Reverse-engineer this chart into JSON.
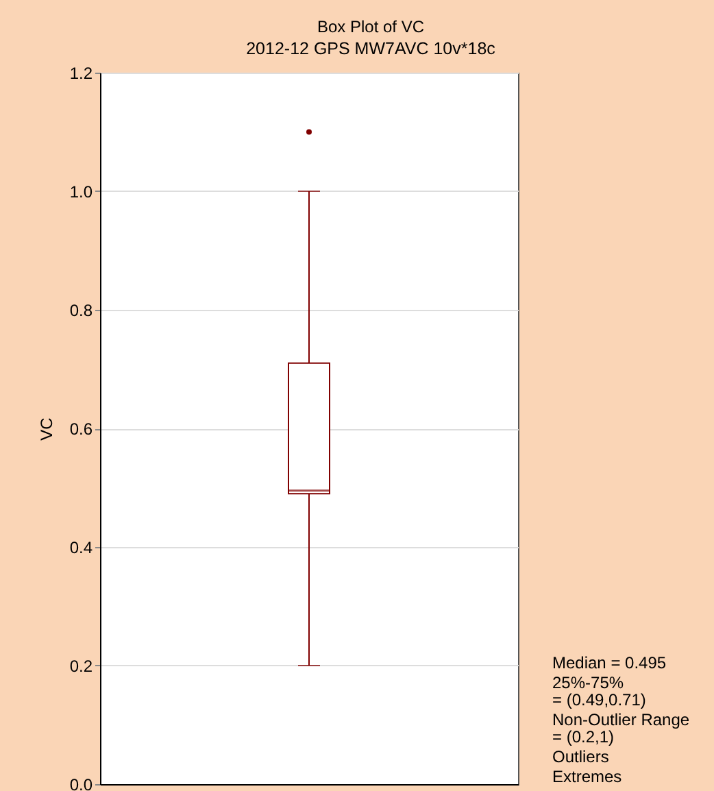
{
  "chart_data": {
    "type": "box",
    "title": "Box Plot of VC",
    "subtitle": "2012-12 GPS MW7AVC 10v*18c",
    "ylabel": "VC",
    "categories": [
      null
    ],
    "color": "#800000",
    "boxes": [
      {
        "low": 0.2,
        "q1": 0.49,
        "median": 0.495,
        "q3": 0.71,
        "high": 1.0,
        "outliers": [
          1.1
        ]
      }
    ],
    "ylim": [
      0,
      1.2
    ],
    "yticks": [
      {
        "value": 0,
        "label": "0.0"
      },
      0.2,
      0.4,
      0.6,
      0.8,
      {
        "value": 1,
        "label": "1.0"
      },
      1.2
    ],
    "grid": "y",
    "tick_labels": "y",
    "annotations": [
      "Median = 0.495",
      "25%-75%\n= (0.49,0.71)",
      "Non-Outlier Range\n= (0.2,1)",
      "Outliers",
      "Extremes"
    ]
  }
}
